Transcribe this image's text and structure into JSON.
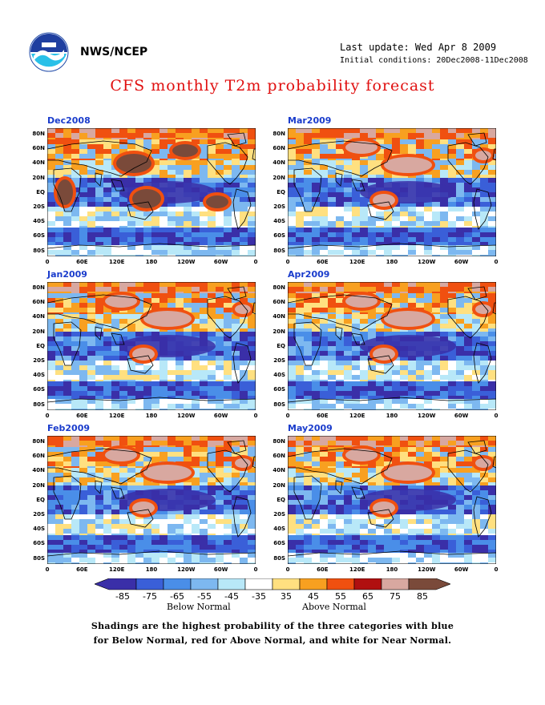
{
  "header": {
    "org": "NWS/NCEP",
    "last_update": "Last update: Wed Apr 8 2009",
    "initial_conditions": "Initial conditions: 20Dec2008-11Dec2008",
    "title": "CFS monthly T2m probability forecast",
    "logo_icon": "noaa-logo-icon"
  },
  "panels": [
    {
      "label": "Dec2008"
    },
    {
      "label": "Mar2009"
    },
    {
      "label": "Jan2009"
    },
    {
      "label": "Apr2009"
    },
    {
      "label": "Feb2009"
    },
    {
      "label": "May2009"
    }
  ],
  "axes": {
    "lat_labels": [
      "80N",
      "60N",
      "40N",
      "20N",
      "EQ",
      "20S",
      "40S",
      "60S",
      "80S"
    ],
    "lon_labels": [
      "0",
      "60E",
      "120E",
      "180",
      "120W",
      "60W",
      "0"
    ]
  },
  "colorbar": {
    "labels": [
      "-85",
      "-75",
      "-65",
      "-55",
      "-45",
      "-35",
      "35",
      "45",
      "55",
      "65",
      "75",
      "85"
    ],
    "colors": [
      "#3a2fa8",
      "#3a5fd8",
      "#4a8ee8",
      "#7db8f0",
      "#b8e8f8",
      "#ffffff",
      "#ffe080",
      "#f8a020",
      "#f05010",
      "#b01010",
      "#d8a8a0",
      "#7a4a3a"
    ],
    "below_label": "Below Normal",
    "above_label": "Above Normal"
  },
  "note": {
    "line1": "Shadings are the highest probability of the three categories with blue",
    "line2": "for Below Normal, red for Above Normal, and white for Near Normal."
  }
}
